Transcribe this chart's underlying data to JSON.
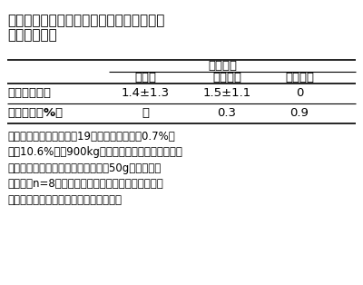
{
  "title_line1": "表２　石豆残存数を指標とした処理効果と",
  "title_line2": "破砕粒発生率",
  "header_group": "処理方法",
  "col_headers": [
    "",
    "無処理",
    "従来型網",
    "改良型網"
  ],
  "rows": [
    [
      "石豆数（個）",
      "1.4±1.3",
      "1.5±1.1",
      "0"
    ],
    [
      "破砕粒率（%）",
      "－",
      "0.3",
      "0.9"
    ]
  ],
  "footnote_lines": [
    "中国産小粒ダイズ（平成19年産、石豆混入率0.7%、",
    "水分10.6%）各900kgを処理し、処理中５分ごとに",
    "排出口からサンプリングしたダイズ50gに含まれる",
    "石豆数（n=8）。破砕粒率は、全量処理後に秤量し",
    "た破砕粒量の、処理量に対する百分率。"
  ],
  "bg_color": "#ffffff",
  "text_color": "#000000",
  "font_size_title": 11,
  "font_size_header": 9.5,
  "font_size_cell": 9.5,
  "font_size_footnote": 8.5
}
